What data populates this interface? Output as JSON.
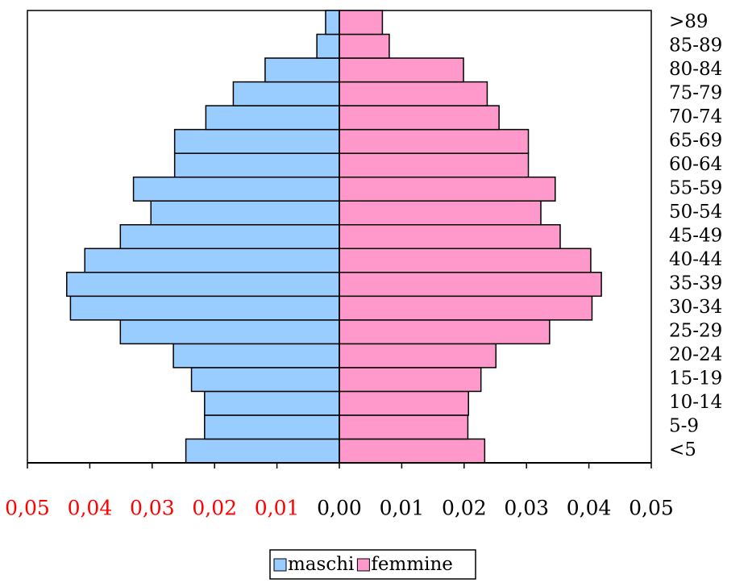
{
  "chart_data": {
    "type": "pyramid",
    "categories": [
      "<5",
      "5-9",
      "10-14",
      "15-19",
      "20-24",
      "25-29",
      "30-34",
      "35-39",
      "40-44",
      "45-49",
      "50-54",
      "55-59",
      "60-64",
      "65-69",
      "70-74",
      "75-79",
      "80-84",
      "85-89",
      ">89"
    ],
    "series": [
      {
        "name": "maschi",
        "color": "#99ccff",
        "values": [
          -0.0246,
          -0.0216,
          -0.0216,
          -0.0237,
          -0.0266,
          -0.0351,
          -0.0431,
          -0.0437,
          -0.0408,
          -0.0351,
          -0.0302,
          -0.033,
          -0.0264,
          -0.0264,
          -0.0214,
          -0.017,
          -0.0119,
          -0.0036,
          -0.0022
        ]
      },
      {
        "name": "femmine",
        "color": "#ff99cc",
        "values": [
          0.0233,
          0.0206,
          0.0207,
          0.0227,
          0.0251,
          0.0337,
          0.0405,
          0.042,
          0.0403,
          0.0354,
          0.0323,
          0.0346,
          0.0303,
          0.0303,
          0.0256,
          0.0237,
          0.0199,
          0.008,
          0.0069
        ]
      }
    ],
    "xlim": [
      -0.05,
      0.05
    ],
    "xticks": [
      {
        "value": -0.05,
        "label": "0,05"
      },
      {
        "value": -0.04,
        "label": "0,04"
      },
      {
        "value": -0.03,
        "label": "0,03"
      },
      {
        "value": -0.02,
        "label": "0,02"
      },
      {
        "value": -0.01,
        "label": "0,01"
      },
      {
        "value": 0,
        "label": "0,00"
      },
      {
        "value": 0.01,
        "label": "0,01"
      },
      {
        "value": 0.02,
        "label": "0,02"
      },
      {
        "value": 0.03,
        "label": "0,03"
      },
      {
        "value": 0.04,
        "label": "0,04"
      },
      {
        "value": 0.05,
        "label": "0,05"
      }
    ],
    "negative_tick_color": "#ff0000",
    "tick_color": "#000000",
    "legend": "bottom"
  }
}
